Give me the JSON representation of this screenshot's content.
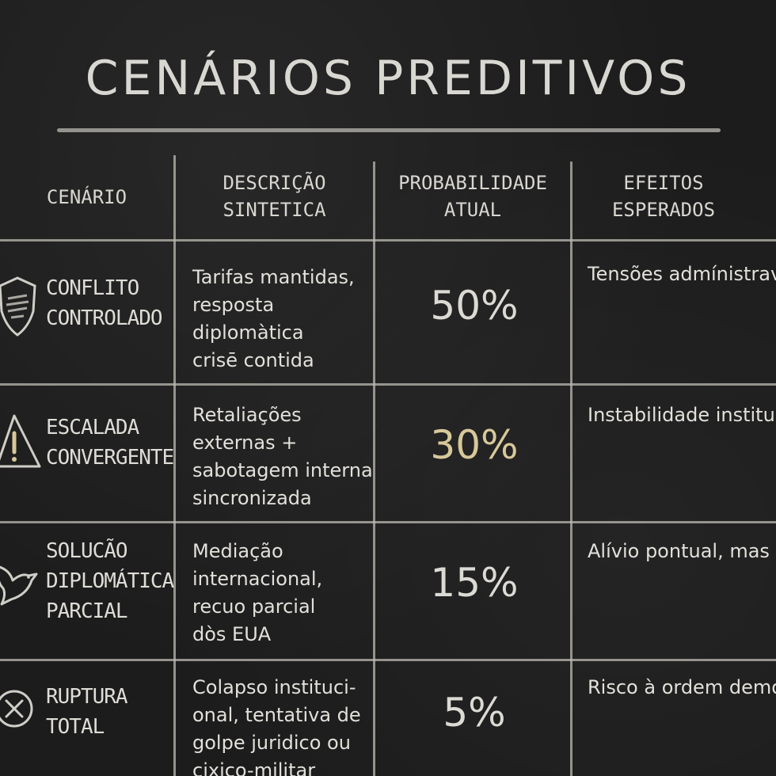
{
  "title": "CENÁRIOS PREDITIVOS",
  "headers": {
    "scenario": "CENÁRIO",
    "description": "DESCRIÇÃO\nSINTETICA",
    "probability": "PROBABILIDADE\nATUAL",
    "effects": "EFEITOS\nESPERADOS"
  },
  "colors": {
    "board": "#1c1c1c",
    "chalk": "#e2e0da",
    "highlight": "#d8c89a"
  },
  "rows": [
    {
      "icon": "shield-icon",
      "name": "CONFLITO\nCONTROLADO",
      "description": "Tarifas mantidas,\nresposta\ndiplomàtica\ncrisē contida",
      "probability": "50%",
      "effects": "Tensões\nadmínistraveis,\ndesgesta politico,\nmas sem ruptura"
    },
    {
      "icon": "warning-triangle-icon",
      "name": "ESCALADA\nCONVERGENTE",
      "description": "Retaliações\nexternas +\nsabotagem interna\nsincronizada",
      "probability": "30%",
      "effects": "Instabilidade\ninstitucional,\nrisco real de\nerosão democrática"
    },
    {
      "icon": "dove-icon",
      "name": "SOLUCÃO\nDIPLOMÁTICA\nPARCIAL",
      "description": "Mediação\ninternacional,\nrecuo parcial\ndòs EUA",
      "probability": "15%",
      "effects": "Alívio pontual,\nmas sem resolver\nestrutura de\ndependência"
    },
    {
      "icon": "x-circle-icon",
      "name": "RUPTURA\nTOTAL",
      "description": "Colapso instituci-\nonal, tentativa de\ngolpe juridico ou\ncixico-militar",
      "probability": "5%",
      "effects": "Risco à ordem\ndemocrática, quebra\nde estabilidade juridica\ne economica"
    }
  ]
}
